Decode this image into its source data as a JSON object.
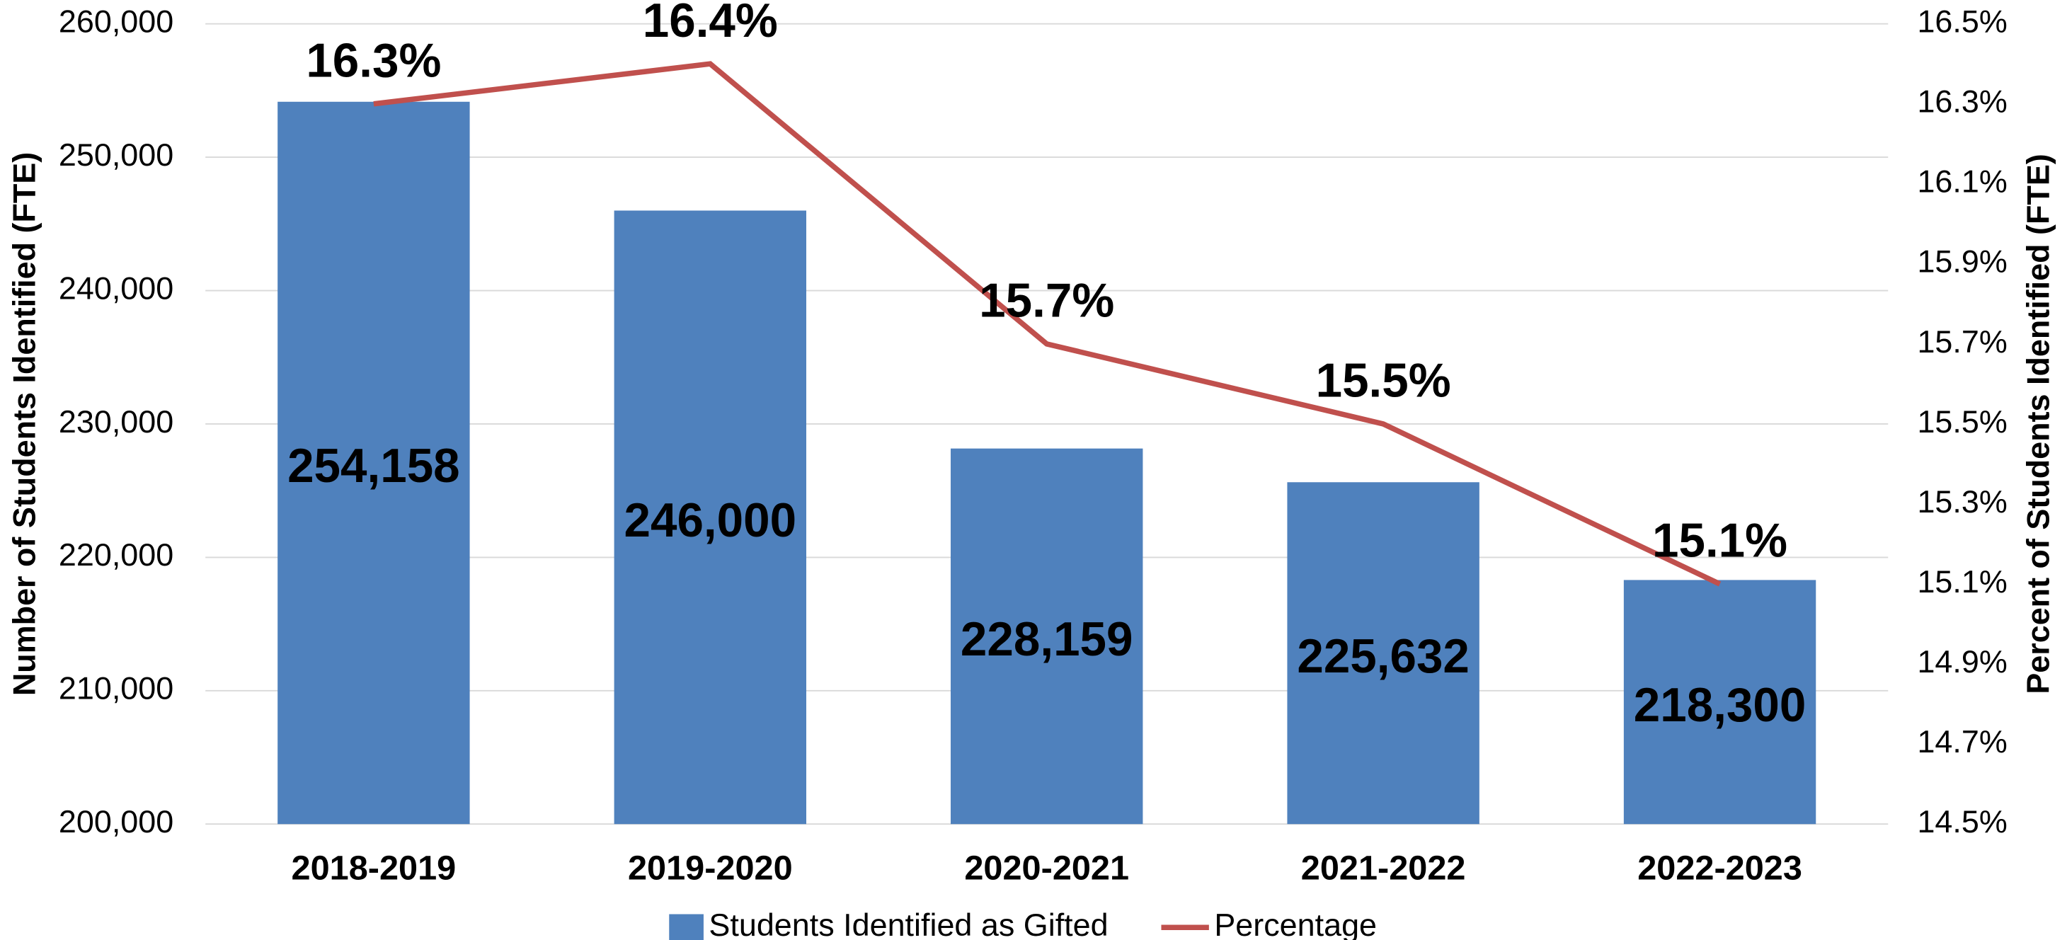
{
  "chart_data": {
    "type": "bar_line",
    "categories": [
      "2018-2019",
      "2019-2020",
      "2020-2021",
      "2021-2022",
      "2022-2023"
    ],
    "series": [
      {
        "name": "Students Identified as Gifted",
        "type": "bar",
        "color": "#4f81bd",
        "axis": "y",
        "values": [
          254158,
          246000,
          228159,
          225632,
          218300
        ],
        "value_labels": [
          "254,158",
          "246,000",
          "228,159",
          "225,632",
          "218,300"
        ]
      },
      {
        "name": "Percentage",
        "type": "line",
        "color": "#c0504d",
        "axis": "y2",
        "values": [
          16.3,
          16.4,
          15.7,
          15.5,
          15.1
        ],
        "value_labels": [
          "16.3%",
          "16.4%",
          "15.7%",
          "15.5%",
          "15.1%"
        ]
      }
    ],
    "ylabel": "Number of Students Identified (FTE)",
    "y2label": "Percent of Students Identified (FTE)",
    "ylim": [
      200000,
      260000
    ],
    "yticks": [
      {
        "value": 200000,
        "label": "200,000"
      },
      {
        "value": 210000,
        "label": "210,000"
      },
      {
        "value": 220000,
        "label": "220,000"
      },
      {
        "value": 230000,
        "label": "230,000"
      },
      {
        "value": 240000,
        "label": "240,000"
      },
      {
        "value": 250000,
        "label": "250,000"
      },
      {
        "value": 260000,
        "label": "260,000"
      }
    ],
    "y2lim": [
      14.5,
      16.5
    ],
    "y2ticks": [
      {
        "value": 14.5,
        "label": "14.5%"
      },
      {
        "value": 14.7,
        "label": "14.7%"
      },
      {
        "value": 14.9,
        "label": "14.9%"
      },
      {
        "value": 15.1,
        "label": "15.1%"
      },
      {
        "value": 15.3,
        "label": "15.3%"
      },
      {
        "value": 15.5,
        "label": "15.5%"
      },
      {
        "value": 15.7,
        "label": "15.7%"
      },
      {
        "value": 15.9,
        "label": "15.9%"
      },
      {
        "value": 16.1,
        "label": "16.1%"
      },
      {
        "value": 16.3,
        "label": "16.3%"
      },
      {
        "value": 16.5,
        "label": "16.5%"
      }
    ],
    "grid": true,
    "legend": "bottom"
  }
}
